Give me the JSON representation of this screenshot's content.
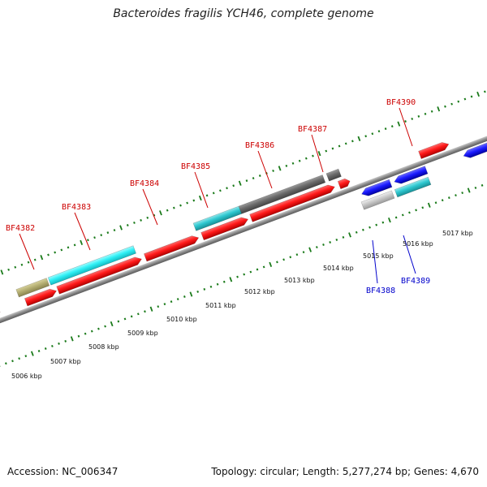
{
  "title": "Bacteroides fragilis YCH46, complete genome",
  "footer": {
    "accession": "Accession: NC_006347",
    "summary": "Topology: circular; Length: 5,277,274 bp; Genes: 4,670"
  },
  "colors": {
    "forward_label": "#cc0000",
    "reverse_label": "#0000cc",
    "tick": "#1a7a1a",
    "backbone": "#808080"
  },
  "scale_labels": [
    "5006 kbp",
    "5007 kbp",
    "5008 kbp",
    "5009 kbp",
    "5010 kbp",
    "5011 kbp",
    "5012 kbp",
    "5013 kbp",
    "5014 kbp",
    "5015 kbp",
    "5016 kbp",
    "5017 kbp"
  ],
  "upper_labels": [
    "BF4382",
    "BF4383",
    "BF4384",
    "BF4385",
    "BF4386",
    "BF4387",
    "BF4390"
  ],
  "lower_labels": [
    "BF4388",
    "BF4389"
  ]
}
